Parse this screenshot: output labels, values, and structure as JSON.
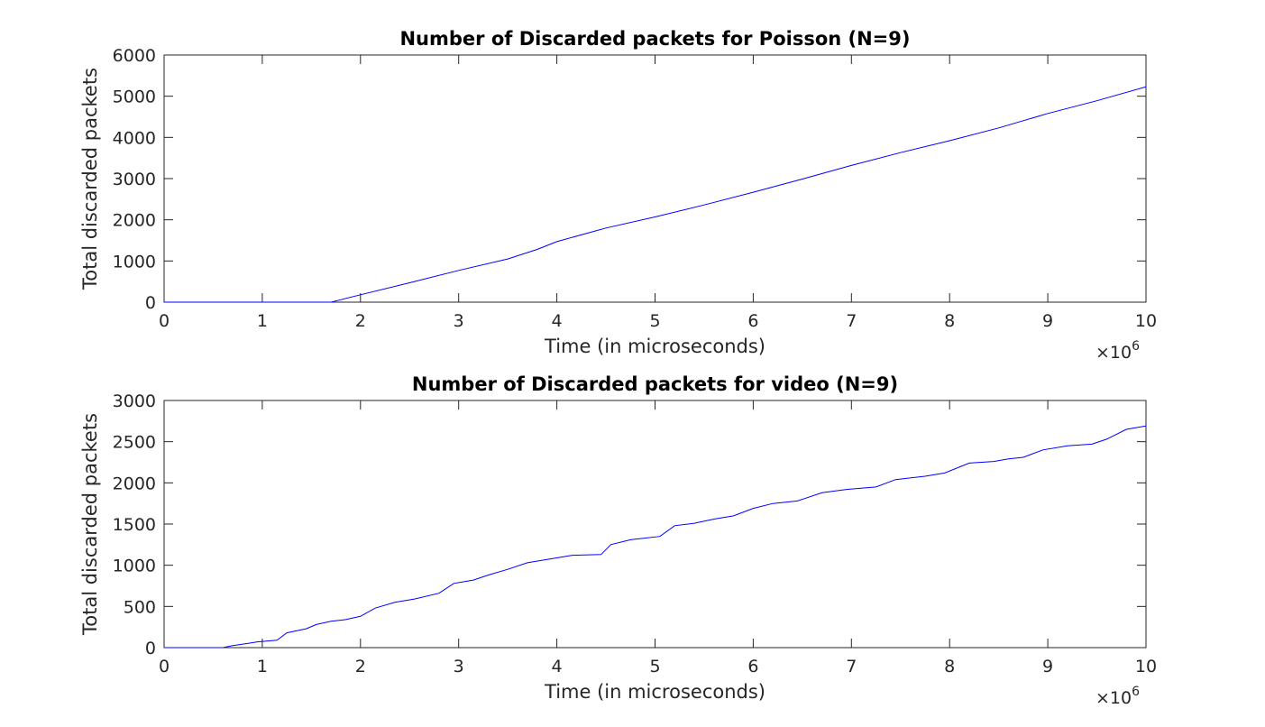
{
  "chart_data": [
    {
      "type": "line",
      "title": "Number of Discarded packets for Poisson (N=9)",
      "xlabel": "Time (in microseconds)",
      "ylabel": "Total discarded packets",
      "x_exponent_label": "×10",
      "x_exponent": "6",
      "xlim": [
        0,
        10
      ],
      "ylim": [
        0,
        6000
      ],
      "xticks": [
        "0",
        "1",
        "2",
        "3",
        "4",
        "5",
        "6",
        "7",
        "8",
        "9",
        "10"
      ],
      "yticks": [
        "0",
        "1000",
        "2000",
        "3000",
        "4000",
        "5000",
        "6000"
      ],
      "grid": false,
      "color": "#0000ff",
      "x": [
        0,
        0.5,
        1.0,
        1.5,
        1.7,
        1.8,
        2.0,
        2.5,
        3.0,
        3.5,
        3.8,
        4.0,
        4.5,
        5.0,
        5.5,
        6.0,
        6.5,
        7.0,
        7.5,
        8.0,
        8.5,
        9.0,
        9.5,
        10.0
      ],
      "y": [
        0,
        0,
        0,
        0,
        0,
        60,
        180,
        470,
        770,
        1050,
        1280,
        1470,
        1800,
        2070,
        2360,
        2670,
        2990,
        3320,
        3630,
        3920,
        4230,
        4580,
        4890,
        5230
      ]
    },
    {
      "type": "line",
      "title": "Number of Discarded packets for video (N=9)",
      "xlabel": "Time (in microseconds)",
      "ylabel": "Total discarded packets",
      "x_exponent_label": "×10",
      "x_exponent": "6",
      "xlim": [
        0,
        10
      ],
      "ylim": [
        0,
        3000
      ],
      "xticks": [
        "0",
        "1",
        "2",
        "3",
        "4",
        "5",
        "6",
        "7",
        "8",
        "9",
        "10"
      ],
      "yticks": [
        "0",
        "500",
        "1000",
        "1500",
        "2000",
        "2500",
        "3000"
      ],
      "grid": false,
      "color": "#0000ff",
      "x": [
        0,
        0.6,
        0.7,
        0.85,
        0.95,
        1.15,
        1.25,
        1.45,
        1.55,
        1.7,
        1.85,
        2.0,
        2.15,
        2.35,
        2.55,
        2.8,
        2.95,
        3.15,
        3.3,
        3.5,
        3.7,
        3.95,
        4.15,
        4.45,
        4.55,
        4.75,
        5.05,
        5.2,
        5.4,
        5.6,
        5.8,
        6.0,
        6.2,
        6.45,
        6.7,
        6.95,
        7.25,
        7.45,
        7.75,
        7.95,
        8.2,
        8.45,
        8.6,
        8.75,
        8.95,
        9.2,
        9.45,
        9.6,
        9.8,
        10.0
      ],
      "y": [
        0,
        0,
        25,
        50,
        70,
        90,
        180,
        230,
        280,
        320,
        340,
        380,
        480,
        550,
        590,
        660,
        780,
        820,
        880,
        950,
        1030,
        1080,
        1120,
        1130,
        1250,
        1310,
        1350,
        1480,
        1510,
        1560,
        1600,
        1690,
        1750,
        1780,
        1880,
        1920,
        1950,
        2040,
        2080,
        2120,
        2240,
        2260,
        2290,
        2310,
        2400,
        2450,
        2470,
        2530,
        2650,
        2690
      ]
    }
  ]
}
